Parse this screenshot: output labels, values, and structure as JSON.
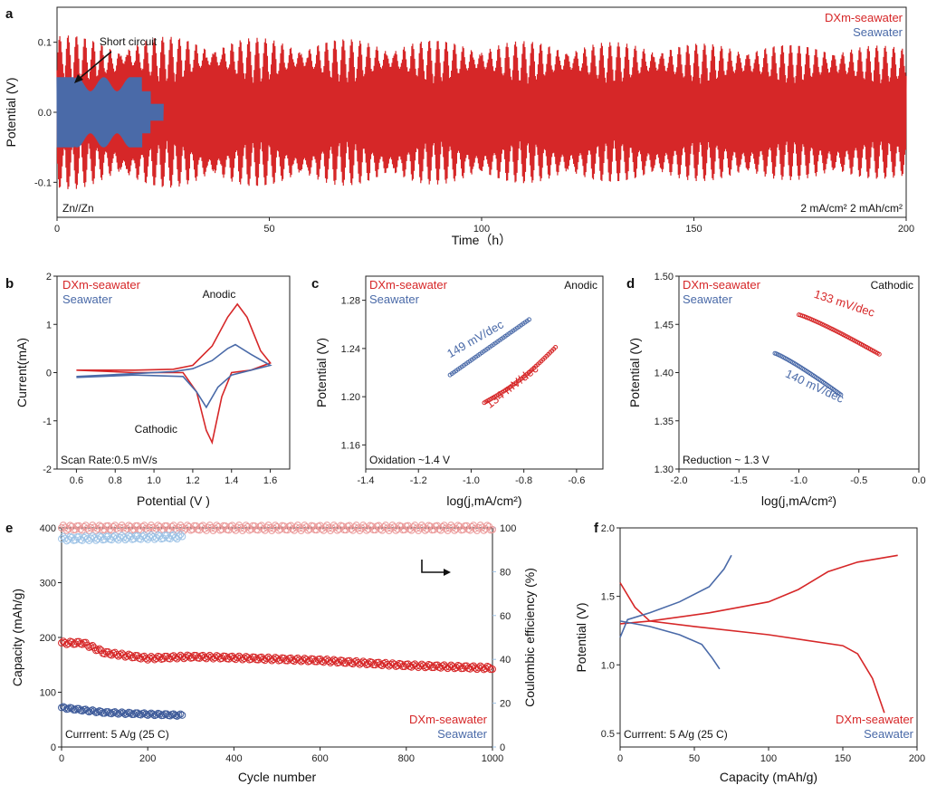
{
  "colors": {
    "red": "#d62728",
    "blue": "#4a6aa8",
    "lightred": "#eb9a9a",
    "lightblue": "#9ec3e6",
    "axis": "#222222"
  },
  "panel_letters": {
    "a": "a",
    "b": "b",
    "c": "c",
    "d": "d",
    "e": "e",
    "f": "f"
  },
  "chart_data": [
    {
      "id": "a",
      "type": "line",
      "xlabel": "Time（h）",
      "ylabel": "Potential (V)",
      "xlim": [
        0,
        200
      ],
      "ylim": [
        -0.15,
        0.15
      ],
      "xticks": [
        "0",
        "50",
        "100",
        "150",
        "200"
      ],
      "yticks": [
        "0.1",
        "0.0",
        "-0.1"
      ],
      "legend": [
        "DXm-seawater",
        "Seawater"
      ],
      "annotations": {
        "top": "Short circuit",
        "left": "Zn//Zn",
        "right": "2 mA/cm² 2 mAh/cm²"
      },
      "series": [
        {
          "name": "DXm-seawater",
          "x_range": [
            0,
            200
          ],
          "amplitude_start": 0.09,
          "amplitude_end": 0.075,
          "cycles": 200
        },
        {
          "name": "Seawater",
          "x_range": [
            0,
            25
          ],
          "amplitude_start": 0.05,
          "amplitude_end": 0.03,
          "short_circuit_at": 25
        }
      ]
    },
    {
      "id": "b",
      "type": "line",
      "xlabel": "Potential (V )",
      "ylabel": "Current(mA)",
      "xlim": [
        0.5,
        1.7
      ],
      "ylim": [
        -2,
        2
      ],
      "xticks": [
        "0.6",
        "0.8",
        "1.0",
        "1.2",
        "1.4",
        "1.6"
      ],
      "yticks": [
        "-2",
        "-1",
        "0",
        "1",
        "2"
      ],
      "legend": [
        "DXm-seawater",
        "Seawater"
      ],
      "annotations": {
        "anodic": "Anodic",
        "cathodic": "Cathodic",
        "note": "Scan Rate:0.5 mV/s"
      },
      "series": [
        {
          "name": "DXm-seawater",
          "upper": [
            [
              0.6,
              0.05
            ],
            [
              0.9,
              0.05
            ],
            [
              1.1,
              0.07
            ],
            [
              1.2,
              0.15
            ],
            [
              1.3,
              0.55
            ],
            [
              1.38,
              1.15
            ],
            [
              1.43,
              1.42
            ],
            [
              1.48,
              1.15
            ],
            [
              1.55,
              0.45
            ],
            [
              1.6,
              0.2
            ]
          ],
          "lower": [
            [
              1.6,
              0.2
            ],
            [
              1.5,
              0.05
            ],
            [
              1.4,
              0
            ],
            [
              1.35,
              -0.5
            ],
            [
              1.3,
              -1.45
            ],
            [
              1.27,
              -1.2
            ],
            [
              1.22,
              -0.4
            ],
            [
              1.15,
              0
            ],
            [
              0.9,
              0
            ],
            [
              0.6,
              0.05
            ]
          ]
        },
        {
          "name": "Seawater",
          "upper": [
            [
              0.6,
              -0.08
            ],
            [
              0.9,
              -0.02
            ],
            [
              1.1,
              0.02
            ],
            [
              1.2,
              0.08
            ],
            [
              1.3,
              0.25
            ],
            [
              1.38,
              0.5
            ],
            [
              1.42,
              0.58
            ],
            [
              1.5,
              0.38
            ],
            [
              1.6,
              0.15
            ]
          ],
          "lower": [
            [
              1.6,
              0.15
            ],
            [
              1.5,
              0.05
            ],
            [
              1.4,
              -0.05
            ],
            [
              1.33,
              -0.3
            ],
            [
              1.27,
              -0.72
            ],
            [
              1.22,
              -0.4
            ],
            [
              1.15,
              -0.08
            ],
            [
              0.9,
              -0.05
            ],
            [
              0.6,
              -0.1
            ]
          ]
        }
      ]
    },
    {
      "id": "c",
      "type": "scatter",
      "xlabel": "log(j,mA/cm²)",
      "ylabel": "Potential (V)",
      "xlim": [
        -1.4,
        -0.5
      ],
      "ylim": [
        1.14,
        1.3
      ],
      "xticks": [
        "-1.4",
        "-1.2",
        "-1.0",
        "-0.8",
        "-0.6"
      ],
      "yticks": [
        "1.16",
        "1.20",
        "1.24",
        "1.28"
      ],
      "legend": [
        "DXm-seawater",
        "Seawater"
      ],
      "annotations": {
        "title": "Anodic",
        "note": "Oxidation ~1.4 V",
        "slope_blue": "149 mV/dec",
        "slope_red": "134 mV/dec"
      },
      "series": [
        {
          "name": "Seawater",
          "x": [
            -1.08,
            -0.78
          ],
          "y": [
            1.218,
            1.264
          ]
        },
        {
          "name": "DXm-seawater",
          "x": [
            -0.95,
            -0.68
          ],
          "y": [
            1.195,
            1.241
          ]
        }
      ]
    },
    {
      "id": "d",
      "type": "scatter",
      "xlabel": "log(j,mA/cm²)",
      "ylabel": "Potential (V)",
      "xlim": [
        -2.0,
        0.0
      ],
      "ylim": [
        1.3,
        1.5
      ],
      "xticks": [
        "-2.0",
        "-1.5",
        "-1.0",
        "-0.5",
        "0.0"
      ],
      "yticks": [
        "1.30",
        "1.35",
        "1.40",
        "1.45",
        "1.50"
      ],
      "legend": [
        "DXm-seawater",
        "Seawater"
      ],
      "annotations": {
        "title": "Cathodic",
        "note": "Reduction ~ 1.3 V",
        "slope_red": "133 mV/dec",
        "slope_blue": "140 mV/dec"
      },
      "series": [
        {
          "name": "DXm-seawater",
          "x": [
            -1.0,
            -0.33
          ],
          "y": [
            1.46,
            1.419
          ]
        },
        {
          "name": "Seawater",
          "x": [
            -1.2,
            -0.65
          ],
          "y": [
            1.42,
            1.377
          ]
        }
      ]
    },
    {
      "id": "e",
      "type": "scatter",
      "xlabel": "Cycle number",
      "ylabel": "Capacity (mAh/g)",
      "ylabel_right": "Coulombic efficiency (%)",
      "xlim": [
        0,
        1000
      ],
      "ylim": [
        0,
        400
      ],
      "ylim_right": [
        0,
        100
      ],
      "xticks": [
        "0",
        "200",
        "400",
        "600",
        "800",
        "1000"
      ],
      "yticks": [
        "0",
        "100",
        "200",
        "300",
        "400"
      ],
      "yticks_right": [
        "0",
        "20",
        "40",
        "60",
        "80",
        "100"
      ],
      "legend": [
        "DXm-seawater",
        "Seawater"
      ],
      "annotations": {
        "note": "Currrent: 5 A/g (25 C)"
      },
      "series": [
        {
          "name": "DXm-seawater capacity",
          "x": [
            0,
            50,
            100,
            200,
            300,
            400,
            600,
            800,
            1000
          ],
          "y": [
            190,
            190,
            172,
            162,
            165,
            163,
            158,
            149,
            144
          ]
        },
        {
          "name": "Seawater capacity",
          "x": [
            0,
            100,
            200,
            280
          ],
          "y": [
            72,
            63,
            60,
            58
          ]
        },
        {
          "name": "DXm-seawater CE",
          "x": [
            0,
            1000
          ],
          "y": [
            100,
            100
          ]
        },
        {
          "name": "Seawater CE",
          "x": [
            0,
            280
          ],
          "y": [
            95,
            96
          ]
        }
      ]
    },
    {
      "id": "f",
      "type": "line",
      "xlabel": "Capacity (mAh/g)",
      "ylabel": "Potential (V)",
      "xlim": [
        0,
        200
      ],
      "ylim": [
        0.4,
        2.0
      ],
      "xticks": [
        "0",
        "50",
        "100",
        "150",
        "200"
      ],
      "yticks": [
        "0.5",
        "1.0",
        "1.5",
        "2.0"
      ],
      "legend": [
        "DXm-seawater",
        "Seawater"
      ],
      "annotations": {
        "note": "Currrent: 5 A/g (25 C)"
      },
      "series": [
        {
          "name": "DXm-seawater charge",
          "x": [
            0,
            20,
            60,
            100,
            120,
            140,
            160,
            187
          ],
          "y": [
            1.3,
            1.32,
            1.38,
            1.46,
            1.55,
            1.68,
            1.75,
            1.8
          ]
        },
        {
          "name": "DXm-seawater discharge",
          "x": [
            0,
            10,
            20,
            50,
            100,
            150,
            160,
            170,
            178
          ],
          "y": [
            1.6,
            1.42,
            1.32,
            1.28,
            1.22,
            1.14,
            1.08,
            0.9,
            0.65
          ]
        },
        {
          "name": "Seawater charge",
          "x": [
            0,
            5,
            20,
            40,
            60,
            70,
            75
          ],
          "y": [
            1.2,
            1.33,
            1.38,
            1.46,
            1.57,
            1.7,
            1.8
          ]
        },
        {
          "name": "Seawater discharge",
          "x": [
            0,
            20,
            40,
            55,
            62,
            67
          ],
          "y": [
            1.32,
            1.28,
            1.22,
            1.15,
            1.05,
            0.97
          ]
        }
      ]
    }
  ]
}
